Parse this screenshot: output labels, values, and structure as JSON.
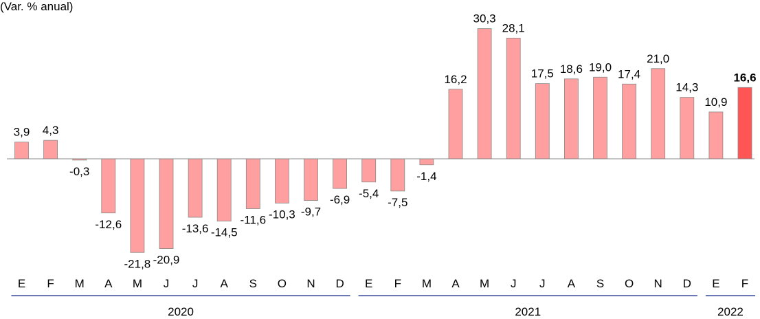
{
  "chart_data": {
    "type": "bar",
    "title": "",
    "unit_label": "(Var. % anual)",
    "xlabel": "",
    "ylabel": "",
    "ylim": [
      -23,
      33
    ],
    "grid": false,
    "categories": [
      "E",
      "F",
      "M",
      "A",
      "M",
      "J",
      "J",
      "A",
      "S",
      "O",
      "N",
      "D",
      "E",
      "F",
      "M",
      "A",
      "M",
      "J",
      "J",
      "A",
      "S",
      "O",
      "N",
      "D",
      "E",
      "F"
    ],
    "values": [
      3.9,
      4.3,
      -0.3,
      -12.6,
      -21.8,
      -20.9,
      -13.6,
      -14.5,
      -11.6,
      -10.3,
      -9.7,
      -6.9,
      -5.4,
      -7.5,
      -1.4,
      16.2,
      30.3,
      28.1,
      17.5,
      18.6,
      19.0,
      17.4,
      21.0,
      14.3,
      10.9,
      16.6
    ],
    "value_labels": [
      "3,9",
      "4,3",
      "-0,3",
      "-12,6",
      "-21,8",
      "-20,9",
      "-13,6",
      "-14,5",
      "-11,6",
      "-10,3",
      "-9,7",
      "-6,9",
      "-5,4",
      "-7,5",
      "-1,4",
      "16,2",
      "30,3",
      "28,1",
      "17,5",
      "18,6",
      "19,0",
      "17,4",
      "21,0",
      "14,3",
      "10,9",
      "16,6"
    ],
    "highlight_index": 25,
    "colors": {
      "bar": "#ff9f9f",
      "highlight": "#ff5555",
      "bar_stroke": "#888888",
      "group_line": "#3b4aa0"
    },
    "groups": [
      {
        "label": "2020",
        "start": 0,
        "end": 11
      },
      {
        "label": "2021",
        "start": 12,
        "end": 23
      },
      {
        "label": "2022",
        "start": 24,
        "end": 25
      }
    ]
  }
}
